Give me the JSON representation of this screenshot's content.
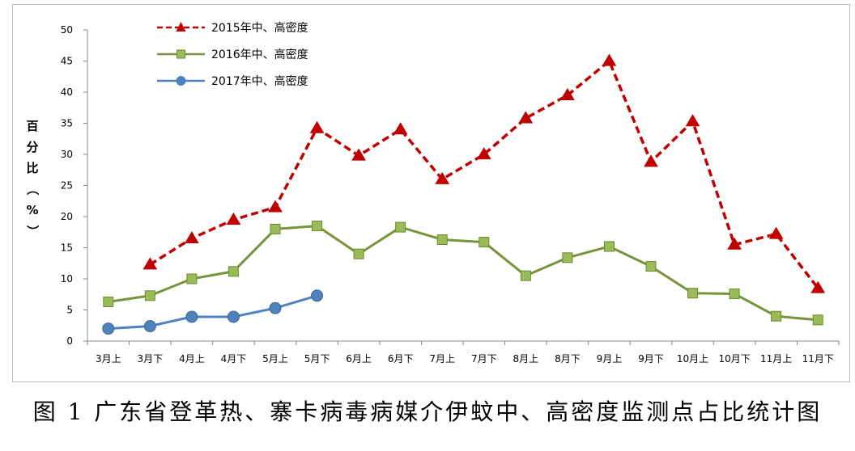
{
  "caption": "图 1 广东省登革热、寨卡病毒病媒介伊蚊中、高密度监测点占比统计图",
  "chart_data": {
    "type": "line",
    "ylabel": "百分比（%）",
    "ylim": [
      0,
      50
    ],
    "yticks": [
      0,
      5,
      10,
      15,
      20,
      25,
      30,
      35,
      40,
      45,
      50
    ],
    "grid": false,
    "legend_position": "top-left",
    "categories": [
      "3月上",
      "3月下",
      "4月上",
      "4月下",
      "5月上",
      "5月下",
      "6月上",
      "6月下",
      "7月上",
      "7月下",
      "8月上",
      "8月下",
      "9月上",
      "9月下",
      "10月上",
      "10月下",
      "11月上",
      "11月下"
    ],
    "series": [
      {
        "name": "2015年中、高密度",
        "color": "#c00000",
        "line_style": "dashed",
        "marker": "triangle",
        "values": [
          null,
          12.3,
          16.5,
          19.5,
          21.5,
          34.2,
          29.8,
          34.0,
          26.0,
          30.0,
          35.8,
          39.5,
          45.0,
          28.8,
          35.3,
          15.5,
          17.2,
          8.5
        ]
      },
      {
        "name": "2016年中、高密度",
        "color": "#77933c",
        "marker_color": "#9bbb59",
        "line_style": "solid",
        "marker": "square",
        "values": [
          6.3,
          7.3,
          10.0,
          11.2,
          18.0,
          18.5,
          14.0,
          18.3,
          16.3,
          15.9,
          10.5,
          13.4,
          15.2,
          12.0,
          7.7,
          7.6,
          4.0,
          3.4
        ]
      },
      {
        "name": "2017年中、高密度",
        "color": "#4f81bd",
        "line_style": "solid",
        "marker": "circle",
        "values": [
          2.0,
          2.4,
          3.9,
          3.9,
          5.3,
          7.3,
          null,
          null,
          null,
          null,
          null,
          null,
          null,
          null,
          null,
          null,
          null,
          null
        ]
      }
    ]
  }
}
